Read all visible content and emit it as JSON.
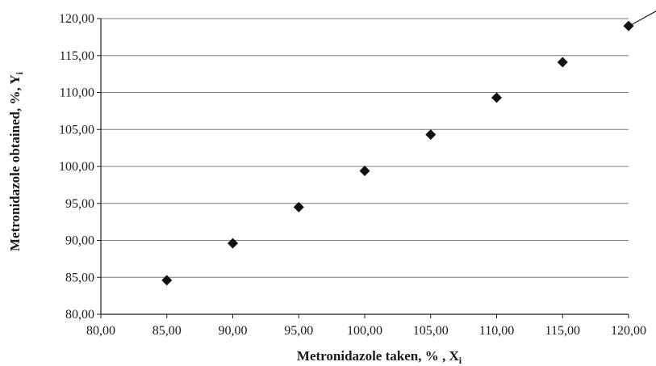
{
  "chart_data": {
    "type": "scatter",
    "xlabel": "Metronidazole taken, % , X",
    "xlabel_sub": "i",
    "ylabel": "Metronidazole obtained, %, Y",
    "ylabel_sub": "i",
    "xlim": [
      80,
      120
    ],
    "ylim": [
      80,
      120
    ],
    "x_ticks": [
      "80,00",
      "85,00",
      "90,00",
      "95,00",
      "100,00",
      "105,00",
      "110,00",
      "115,00",
      "120,00"
    ],
    "y_ticks": [
      "80,00",
      "85,00",
      "90,00",
      "95,00",
      "100,00",
      "105,00",
      "110,00",
      "115,00",
      "120,00"
    ],
    "grid": "horizontal",
    "series": [
      {
        "x": [
          85,
          90,
          95,
          100,
          105,
          110,
          115,
          120
        ],
        "y": [
          84.6,
          89.6,
          94.5,
          99.4,
          104.3,
          109.3,
          114.1,
          119.0
        ],
        "marker": "diamond",
        "color": "#111111"
      }
    ],
    "trendline": {
      "slope": 0.9871,
      "intercept": 0.5
    }
  }
}
